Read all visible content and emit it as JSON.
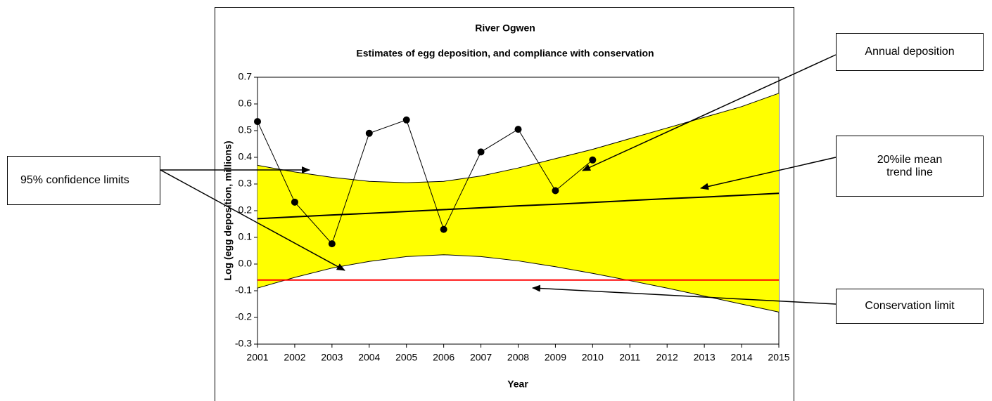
{
  "chart_data": {
    "type": "line",
    "title": "River Ogwen",
    "subtitle": "Estimates of egg deposition, and compliance with conservation",
    "x_label": "Year",
    "y_label": "Log (egg deposition, millions)",
    "x": [
      2001,
      2002,
      2003,
      2004,
      2005,
      2006,
      2007,
      2008,
      2009,
      2010,
      2011,
      2012,
      2013,
      2014,
      2015
    ],
    "xlim": [
      2001,
      2015
    ],
    "xticks": [
      2001,
      2002,
      2003,
      2004,
      2005,
      2006,
      2007,
      2008,
      2009,
      2010,
      2011,
      2012,
      2013,
      2014,
      2015
    ],
    "ylim": [
      -0.3,
      0.7
    ],
    "yticks": [
      -0.3,
      -0.2,
      -0.1,
      {
        "value": 0,
        "label": "0.0"
      },
      0.1,
      0.2,
      0.3,
      0.4,
      0.5,
      0.6,
      0.7
    ],
    "grid": false,
    "band": {
      "name": "95% confidence limits",
      "color": "#ffff00",
      "upper": [
        0.37,
        0.345,
        0.325,
        0.31,
        0.305,
        0.31,
        0.33,
        0.36,
        0.395,
        0.43,
        0.47,
        0.51,
        0.55,
        0.59,
        0.64
      ],
      "lower": [
        -0.09,
        -0.05,
        -0.015,
        0.01,
        0.028,
        0.035,
        0.028,
        0.012,
        -0.01,
        -0.035,
        -0.062,
        -0.09,
        -0.12,
        -0.15,
        -0.18
      ]
    },
    "series": [
      {
        "name": "Annual deposition",
        "color": "#000000",
        "marker": "circle",
        "values": [
          0.534,
          0.232,
          0.076,
          0.49,
          0.54,
          0.13,
          0.42,
          0.505,
          0.275,
          0.39,
          null,
          null,
          null,
          null,
          null
        ]
      },
      {
        "name": "20%ile mean trend line",
        "color": "#000000",
        "values": [
          0.17,
          0.177,
          0.184,
          0.19,
          0.197,
          0.204,
          0.211,
          0.218,
          0.224,
          0.231,
          0.238,
          0.245,
          0.251,
          0.258,
          0.265
        ]
      },
      {
        "name": "Conservation limit",
        "color": "#ff0000",
        "values": [
          -0.06,
          -0.06,
          -0.06,
          -0.06,
          -0.06,
          -0.06,
          -0.06,
          -0.06,
          -0.06,
          -0.06,
          -0.06,
          -0.06,
          -0.06,
          -0.06,
          -0.06
        ]
      }
    ]
  }
}
